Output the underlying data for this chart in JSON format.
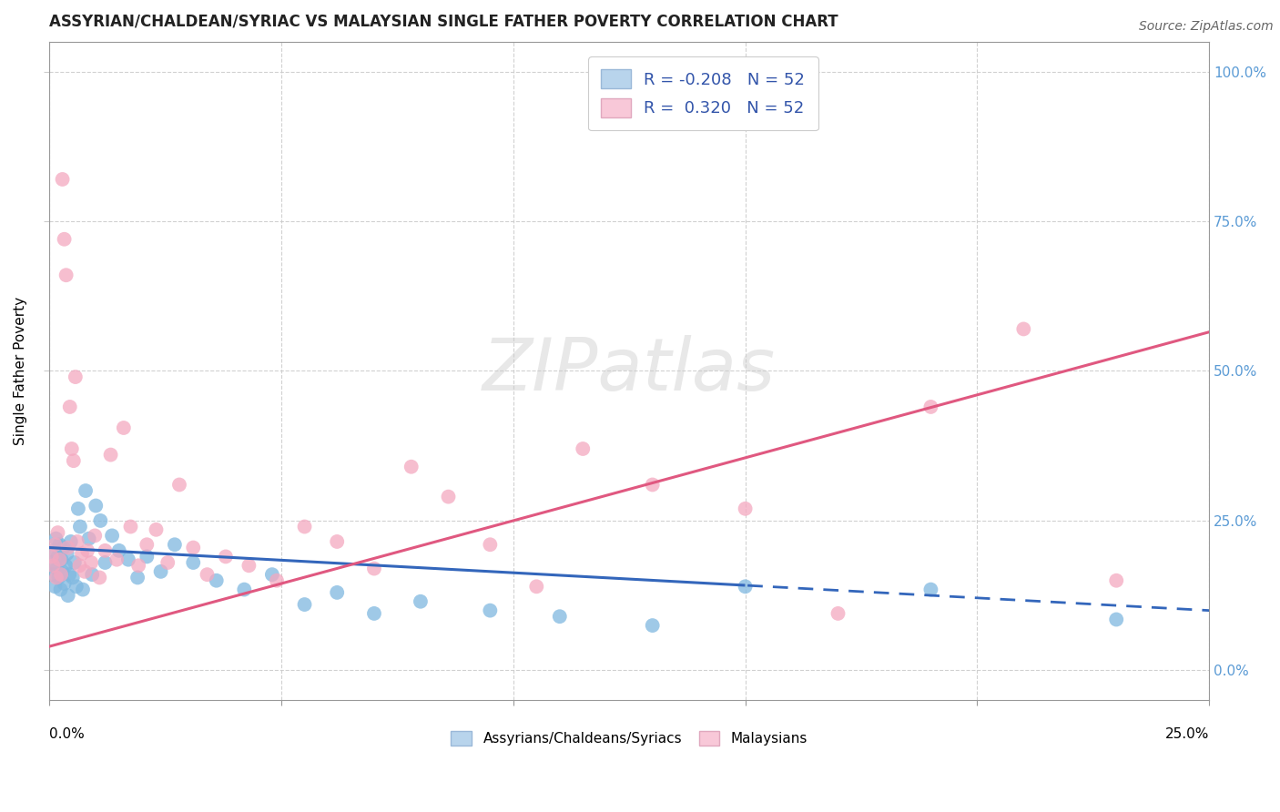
{
  "title": "ASSYRIAN/CHALDEAN/SYRIAC VS MALAYSIAN SINGLE FATHER POVERTY CORRELATION CHART",
  "source": "Source: ZipAtlas.com",
  "ylabel": "Single Father Poverty",
  "y_tick_values": [
    0,
    25,
    50,
    75,
    100
  ],
  "x_tick_values": [
    0,
    5,
    10,
    15,
    20,
    25
  ],
  "xlim": [
    0,
    25
  ],
  "ylim": [
    -5,
    105
  ],
  "blue_scatter_color": "#7fb8e0",
  "pink_scatter_color": "#f4a8c0",
  "blue_line_color": "#3366bb",
  "pink_line_color": "#e05880",
  "blue_line_intercept": 20.5,
  "blue_line_slope": -0.42,
  "pink_line_intercept": 4.0,
  "pink_line_slope": 2.1,
  "tick_color": "#5b9bd5",
  "grid_color": "#cccccc",
  "watermark_text": "ZIPatlas",
  "assyrian_points": [
    [
      0.05,
      18.0
    ],
    [
      0.08,
      16.0
    ],
    [
      0.1,
      20.0
    ],
    [
      0.12,
      14.0
    ],
    [
      0.14,
      22.0
    ],
    [
      0.16,
      17.0
    ],
    [
      0.18,
      19.0
    ],
    [
      0.2,
      15.5
    ],
    [
      0.22,
      21.0
    ],
    [
      0.24,
      13.5
    ],
    [
      0.26,
      18.5
    ],
    [
      0.28,
      16.5
    ],
    [
      0.3,
      20.5
    ],
    [
      0.32,
      14.5
    ],
    [
      0.35,
      17.5
    ],
    [
      0.38,
      19.5
    ],
    [
      0.4,
      12.5
    ],
    [
      0.43,
      16.0
    ],
    [
      0.46,
      21.5
    ],
    [
      0.5,
      15.5
    ],
    [
      0.54,
      18.0
    ],
    [
      0.58,
      14.0
    ],
    [
      0.62,
      27.0
    ],
    [
      0.66,
      24.0
    ],
    [
      0.72,
      13.5
    ],
    [
      0.78,
      30.0
    ],
    [
      0.85,
      22.0
    ],
    [
      0.92,
      16.0
    ],
    [
      1.0,
      27.5
    ],
    [
      1.1,
      25.0
    ],
    [
      1.2,
      18.0
    ],
    [
      1.35,
      22.5
    ],
    [
      1.5,
      20.0
    ],
    [
      1.7,
      18.5
    ],
    [
      1.9,
      15.5
    ],
    [
      2.1,
      19.0
    ],
    [
      2.4,
      16.5
    ],
    [
      2.7,
      21.0
    ],
    [
      3.1,
      18.0
    ],
    [
      3.6,
      15.0
    ],
    [
      4.2,
      13.5
    ],
    [
      4.8,
      16.0
    ],
    [
      5.5,
      11.0
    ],
    [
      6.2,
      13.0
    ],
    [
      7.0,
      9.5
    ],
    [
      8.0,
      11.5
    ],
    [
      9.5,
      10.0
    ],
    [
      11.0,
      9.0
    ],
    [
      13.0,
      7.5
    ],
    [
      15.0,
      14.0
    ],
    [
      19.0,
      13.5
    ],
    [
      23.0,
      8.5
    ]
  ],
  "malaysian_points": [
    [
      0.05,
      19.0
    ],
    [
      0.08,
      17.5
    ],
    [
      0.12,
      21.0
    ],
    [
      0.15,
      15.5
    ],
    [
      0.18,
      23.0
    ],
    [
      0.22,
      18.5
    ],
    [
      0.25,
      16.0
    ],
    [
      0.28,
      82.0
    ],
    [
      0.32,
      72.0
    ],
    [
      0.36,
      66.0
    ],
    [
      0.4,
      20.5
    ],
    [
      0.44,
      44.0
    ],
    [
      0.48,
      37.0
    ],
    [
      0.52,
      35.0
    ],
    [
      0.56,
      49.0
    ],
    [
      0.6,
      21.5
    ],
    [
      0.65,
      17.5
    ],
    [
      0.7,
      19.5
    ],
    [
      0.76,
      16.5
    ],
    [
      0.82,
      20.0
    ],
    [
      0.9,
      18.0
    ],
    [
      0.98,
      22.5
    ],
    [
      1.08,
      15.5
    ],
    [
      1.2,
      20.0
    ],
    [
      1.32,
      36.0
    ],
    [
      1.45,
      18.5
    ],
    [
      1.6,
      40.5
    ],
    [
      1.75,
      24.0
    ],
    [
      1.92,
      17.5
    ],
    [
      2.1,
      21.0
    ],
    [
      2.3,
      23.5
    ],
    [
      2.55,
      18.0
    ],
    [
      2.8,
      31.0
    ],
    [
      3.1,
      20.5
    ],
    [
      3.4,
      16.0
    ],
    [
      3.8,
      19.0
    ],
    [
      4.3,
      17.5
    ],
    [
      4.9,
      15.0
    ],
    [
      5.5,
      24.0
    ],
    [
      6.2,
      21.5
    ],
    [
      7.0,
      17.0
    ],
    [
      7.8,
      34.0
    ],
    [
      8.6,
      29.0
    ],
    [
      9.5,
      21.0
    ],
    [
      10.5,
      14.0
    ],
    [
      11.5,
      37.0
    ],
    [
      13.0,
      31.0
    ],
    [
      15.0,
      27.0
    ],
    [
      17.0,
      9.5
    ],
    [
      19.0,
      44.0
    ],
    [
      21.0,
      57.0
    ],
    [
      23.0,
      15.0
    ]
  ]
}
